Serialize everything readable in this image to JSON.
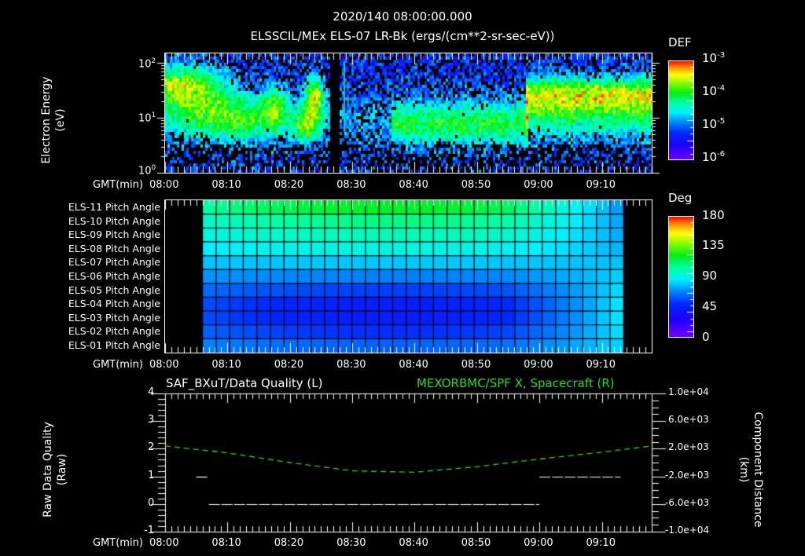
{
  "header": {
    "timestamp": "2020/140 08:00:00.000",
    "title": "ELSSCIL/MEx ELS-07 LR-Bk  (ergs/(cm**2-sr-sec-eV))"
  },
  "time_axis": {
    "label": "GMT(min)",
    "ticks": [
      "08:00",
      "08:10",
      "08:20",
      "08:30",
      "08:40",
      "08:50",
      "09:00",
      "09:10"
    ]
  },
  "colors": {
    "background": "#000000",
    "axis": "#ffffff",
    "spacecraft_trace": "#22dd22",
    "data_quality_trace": "#ffffff"
  },
  "chart_data": [
    {
      "type": "heatmap",
      "title": "ELSSCIL/MEx ELS-07 LR-Bk (ergs/(cm**2-sr-sec-eV))",
      "ylabel": "Electron Energy (eV)",
      "ylabel_lines": [
        "Electron Energy",
        "(eV)"
      ],
      "yscale": "log",
      "ylim": [
        1,
        150
      ],
      "yticks": [
        {
          "base": "10",
          "exp": "0"
        },
        {
          "base": "10",
          "exp": "1"
        },
        {
          "base": "10",
          "exp": "2"
        }
      ],
      "xlabel": "GMT(min)",
      "x_range": [
        "08:00",
        "09:18"
      ],
      "colorbar": {
        "label": "DEF",
        "scale": "log",
        "range": [
          1e-06,
          0.001
        ],
        "ticks": [
          {
            "base": "10",
            "exp": "-3"
          },
          {
            "base": "10",
            "exp": "-4"
          },
          {
            "base": "10",
            "exp": "-5"
          },
          {
            "base": "10",
            "exp": "-6"
          }
        ]
      },
      "features": [
        {
          "time": "08:00-08:07",
          "energy_eV": "20-60",
          "level": "~1e-4 (green)"
        },
        {
          "time": "08:15-08:19",
          "energy_eV": "10-30",
          "level": "~5e-5"
        },
        {
          "time": "08:22-08:25",
          "energy_eV": "10-50",
          "level": "~1e-4 (yellow-green)"
        },
        {
          "time": "08:26-08:28",
          "energy_eV": "all",
          "level": "data gap"
        },
        {
          "time": "08:38-08:58",
          "energy_eV": "5-15",
          "level": "~2e-5 (cyan)"
        },
        {
          "time": "08:58-09:18",
          "energy_eV": "15-60",
          "level": "~1e-4 (green)"
        }
      ]
    },
    {
      "type": "heatmap",
      "title": "Pitch Angle",
      "ylabel": "Pitch Angle",
      "rows": [
        "ELS-11 Pitch Angle",
        "ELS-10 Pitch Angle",
        "ELS-09 Pitch Angle",
        "ELS-08 Pitch Angle",
        "ELS-07 Pitch Angle",
        "ELS-06 Pitch Angle",
        "ELS-05 Pitch Angle",
        "ELS-04 Pitch Angle",
        "ELS-03 Pitch Angle",
        "ELS-02 Pitch Angle",
        "ELS-01 Pitch Angle"
      ],
      "xlabel": "GMT(min)",
      "data_time_range": [
        "08:06",
        "09:13"
      ],
      "n_columns": 31,
      "approx_values_deg_mid_interval": [
        120,
        108,
        100,
        92,
        80,
        68,
        55,
        45,
        45,
        52,
        62
      ],
      "colorbar": {
        "label": "Deg",
        "range": [
          0,
          180
        ],
        "ticks": [
          "180",
          "135",
          "90",
          "45",
          "0"
        ]
      }
    },
    {
      "type": "line",
      "title_left": "SAF_BXuT/Data Quality (L)",
      "title_right": "MEXORBMC/SPF X, Spacecraft (R)",
      "ylabel_left": "Raw Data Quality (Raw)",
      "ylabel_left_lines": [
        "Raw Data Quality",
        "(Raw)"
      ],
      "ylabel_right": "Component Distance (km)",
      "ylabel_right_lines": [
        "Component Distance",
        "(km)"
      ],
      "ylim_left": [
        -1,
        4
      ],
      "yticks_left": [
        "4",
        "3",
        "2",
        "1",
        "0",
        "-1"
      ],
      "ylim_right": [
        -10000,
        10000
      ],
      "yticks_right": [
        "1.0e+04",
        "6.0e+03",
        "2.0e+03",
        "-2.0e+03",
        "-6.0e+03",
        "-1.0e+04"
      ],
      "xlabel": "GMT(min)",
      "series": [
        {
          "name": "Data Quality (L)",
          "axis": "left",
          "style": "solid white",
          "segments": [
            {
              "x": [
                "08:05",
                "08:07"
              ],
              "y": 1
            },
            {
              "x": [
                "08:07",
                "09:00"
              ],
              "y": 0
            },
            {
              "x": [
                "09:00",
                "09:13"
              ],
              "y": 1
            }
          ]
        },
        {
          "name": "SPF X, Spacecraft (R)",
          "axis": "right",
          "style": "dashed green",
          "x": [
            "08:00",
            "08:10",
            "08:20",
            "08:30",
            "08:40",
            "08:50",
            "09:00",
            "09:10",
            "09:18"
          ],
          "values": [
            2400,
            1400,
            0,
            -1200,
            -1400,
            -600,
            500,
            1500,
            2400
          ]
        }
      ]
    }
  ]
}
